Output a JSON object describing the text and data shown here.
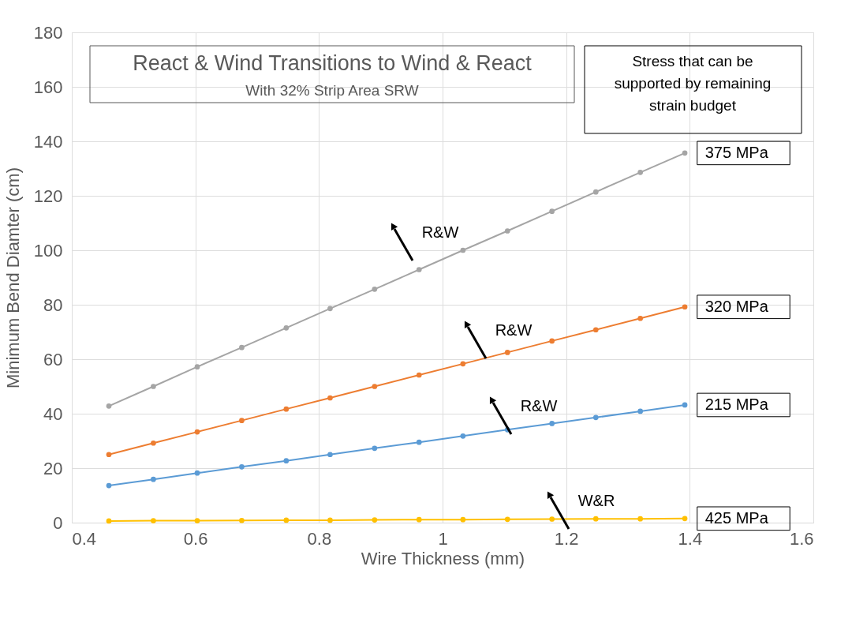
{
  "chart_data": {
    "type": "line",
    "title": "React & Wind Transitions to Wind & React",
    "subtitle": "With 32% Strip Area SRW",
    "xlabel": "Wire Thickness (mm)",
    "ylabel": "Minimum Bend Diamter (cm)",
    "x": [
      0.46,
      0.532,
      0.603,
      0.675,
      0.747,
      0.818,
      0.89,
      0.962,
      1.033,
      1.105,
      1.177,
      1.248,
      1.32,
      1.392
    ],
    "series": [
      {
        "name": "375 MPa",
        "color": "#a5a5a5",
        "values": [
          42.8,
          50,
          57.2,
          64.3,
          71.5,
          78.6,
          85.7,
          92.9,
          100,
          107.1,
          114.3,
          121.4,
          128.6,
          135.7
        ]
      },
      {
        "name": "320 MPa",
        "color": "#ed7d31",
        "values": [
          25,
          29.2,
          33.3,
          37.5,
          41.7,
          45.8,
          50,
          54.2,
          58.3,
          62.5,
          66.7,
          70.8,
          75,
          79.2
        ]
      },
      {
        "name": "215 MPa",
        "color": "#5b9bd5",
        "values": [
          13.6,
          15.9,
          18.2,
          20.5,
          22.7,
          25,
          27.3,
          29.5,
          31.8,
          34.1,
          36.4,
          38.6,
          40.9,
          43.2
        ]
      },
      {
        "name": "425 MPa",
        "color": "#ffc000",
        "values": [
          0.6,
          0.7,
          0.7,
          0.8,
          0.9,
          0.9,
          1,
          1.1,
          1.1,
          1.2,
          1.3,
          1.4,
          1.4,
          1.5
        ]
      }
    ],
    "annotations": [
      "R&W",
      "R&W",
      "R&W",
      "W&R",
      "Stress that can be supported by remaining strain budget"
    ],
    "xlim": [
      0.4,
      1.6
    ],
    "xticks": [
      0.4,
      0.6,
      0.8,
      1,
      1.2,
      1.4,
      1.6
    ],
    "ylim": [
      0,
      180
    ],
    "yticks": [
      0,
      20,
      40,
      60,
      80,
      100,
      120,
      140,
      160,
      180
    ],
    "grid": true,
    "marker": "circle",
    "line_style": "solid"
  }
}
